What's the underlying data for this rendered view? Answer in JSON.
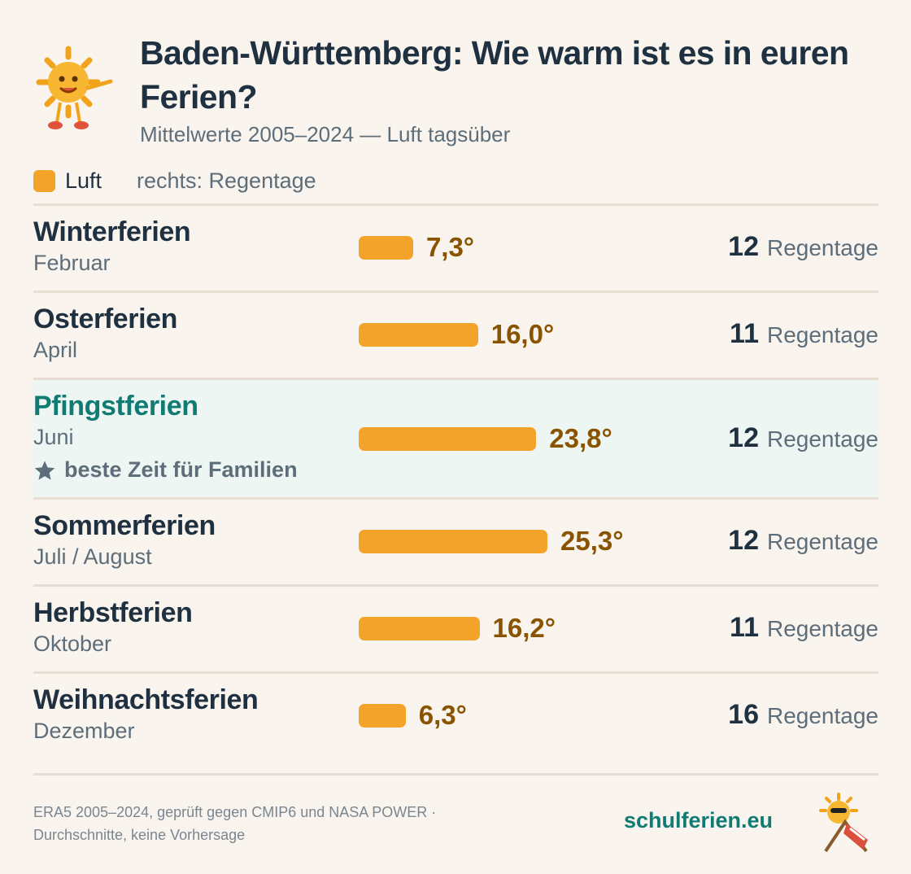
{
  "chart_data": {
    "type": "bar",
    "title": "Baden-Württemberg: Wie warm ist es in euren Ferien?",
    "subtitle": "Mittelwerte 2005–2024 — Luft tagsüber",
    "legend": {
      "name": "Luft",
      "color": "#f4a32a",
      "note": "rechts: Regentage"
    },
    "categories": [
      "Winterferien",
      "Osterferien",
      "Pfingstferien",
      "Sommerferien",
      "Herbstferien",
      "Weihnachtsferien"
    ],
    "months": [
      "Februar",
      "April",
      "Juni",
      "Juli / August",
      "Oktober",
      "Dezember"
    ],
    "values": [
      7.3,
      16.0,
      23.8,
      25.3,
      16.2,
      6.3
    ],
    "value_labels": [
      "7,3°",
      "16,0°",
      "23,8°",
      "25,3°",
      "16,2°",
      "6,3°"
    ],
    "color": "#f4a32a",
    "rain_days": [
      12,
      11,
      12,
      12,
      11,
      16
    ],
    "rain_unit": "Regentage",
    "highlight": {
      "index": 2,
      "text": "beste Zeit für Familien"
    },
    "footer": [
      "ERA5 2005–2024, geprüft gegen CMIP6 und NASA POWER ·",
      "Durchschnitte, keine Vorhersage"
    ],
    "brand": "schulferien.eu"
  }
}
